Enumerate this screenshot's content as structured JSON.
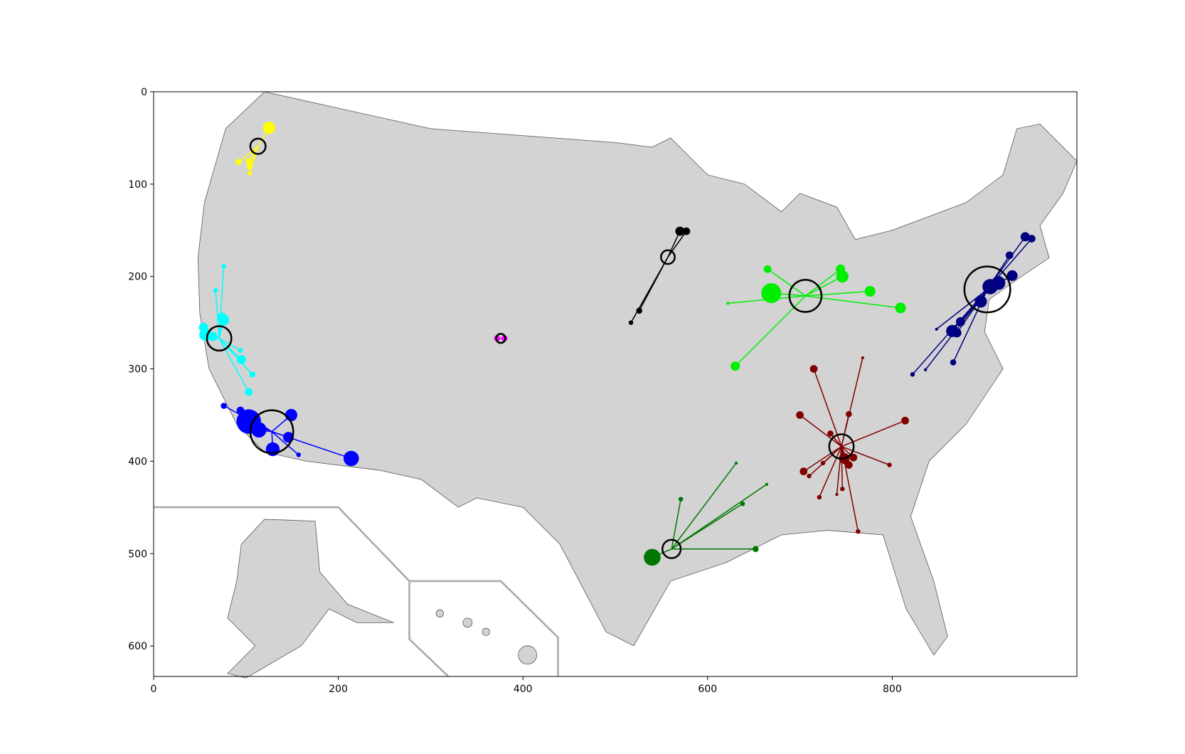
{
  "chart_data": {
    "type": "scatter",
    "xlim": [
      0,
      1000
    ],
    "ylim": [
      633,
      0
    ],
    "xticks": [
      0,
      200,
      400,
      600,
      800
    ],
    "yticks": [
      0,
      100,
      200,
      300,
      400,
      500,
      600
    ],
    "series": [
      {
        "color": "#ffff00",
        "center": [
          113,
          59
        ],
        "center_size": 10,
        "x": [
          125,
          92,
          103,
          104,
          104
        ],
        "y": [
          39,
          76,
          75,
          81,
          88
        ],
        "sizes": [
          8,
          4,
          4,
          4,
          3
        ]
      },
      {
        "color": "#00ffff",
        "center": [
          71,
          267
        ],
        "center_size": 16,
        "x": [
          76,
          67,
          74,
          76,
          54,
          56,
          64,
          94,
          95,
          107,
          103
        ],
        "y": [
          189,
          215,
          244,
          247,
          255,
          263,
          265,
          280,
          290,
          306,
          325
        ],
        "sizes": [
          3,
          3,
          6,
          7,
          6,
          8,
          6,
          3,
          6,
          4,
          5
        ]
      },
      {
        "color": "#0000ff",
        "center": [
          128,
          368
        ],
        "center_size": 28,
        "x": [
          76,
          94,
          103,
          114,
          149,
          146,
          129,
          157,
          214
        ],
        "y": [
          340,
          345,
          357,
          366,
          350,
          374,
          387,
          393,
          397
        ],
        "sizes": [
          4,
          5,
          16,
          10,
          8,
          7,
          9,
          3,
          10
        ]
      },
      {
        "color": "#ff00ff",
        "center": [
          376,
          267
        ],
        "center_size": 6,
        "x": [
          372,
          380
        ],
        "y": [
          267,
          267
        ],
        "sizes": [
          4,
          4
        ]
      },
      {
        "color": "#000000",
        "center": [
          557,
          179
        ],
        "center_size": 9,
        "x": [
          570,
          577,
          526,
          517
        ],
        "y": [
          151,
          151,
          237,
          250
        ],
        "sizes": [
          6,
          5,
          4,
          3
        ]
      },
      {
        "color": "#00ee00",
        "center": [
          706,
          221
        ],
        "center_size": 21,
        "x": [
          669,
          665,
          744,
          746,
          776,
          809,
          630,
          622
        ],
        "y": [
          218,
          192,
          192,
          200,
          216,
          234,
          297,
          229
        ],
        "sizes": [
          13,
          5,
          6,
          8,
          7,
          7,
          6,
          2
        ]
      },
      {
        "color": "#000080",
        "center": [
          903,
          214
        ],
        "center_size": 30,
        "x": [
          944,
          951,
          927,
          930,
          915,
          906,
          896,
          874,
          865,
          870,
          866,
          822,
          836,
          848
        ],
        "y": [
          157,
          159,
          177,
          199,
          207,
          211,
          227,
          249,
          259,
          261,
          293,
          306,
          301,
          257
        ],
        "sizes": [
          6,
          5,
          5,
          7,
          9,
          10,
          8,
          6,
          8,
          6,
          4,
          3,
          2,
          2
        ]
      },
      {
        "color": "#800000",
        "center": [
          745,
          384
        ],
        "center_size": 16,
        "x": [
          715,
          768,
          700,
          753,
          814,
          733,
          704,
          710,
          725,
          721,
          740,
          746,
          748,
          758,
          753,
          797,
          763
        ],
        "y": [
          300,
          288,
          350,
          349,
          356,
          370,
          411,
          416,
          402,
          439,
          436,
          430,
          397,
          396,
          404,
          404,
          476
        ],
        "sizes": [
          5,
          2,
          5,
          4,
          5,
          4,
          5,
          3,
          3,
          3,
          2,
          3,
          7,
          5,
          5,
          3,
          3
        ]
      },
      {
        "color": "#007700",
        "center": [
          561,
          495
        ],
        "center_size": 12,
        "x": [
          540,
          652,
          571,
          638,
          664,
          631
        ],
        "y": [
          504,
          495,
          441,
          446,
          425,
          402
        ],
        "sizes": [
          11,
          4,
          3,
          3,
          2,
          2
        ]
      }
    ]
  }
}
